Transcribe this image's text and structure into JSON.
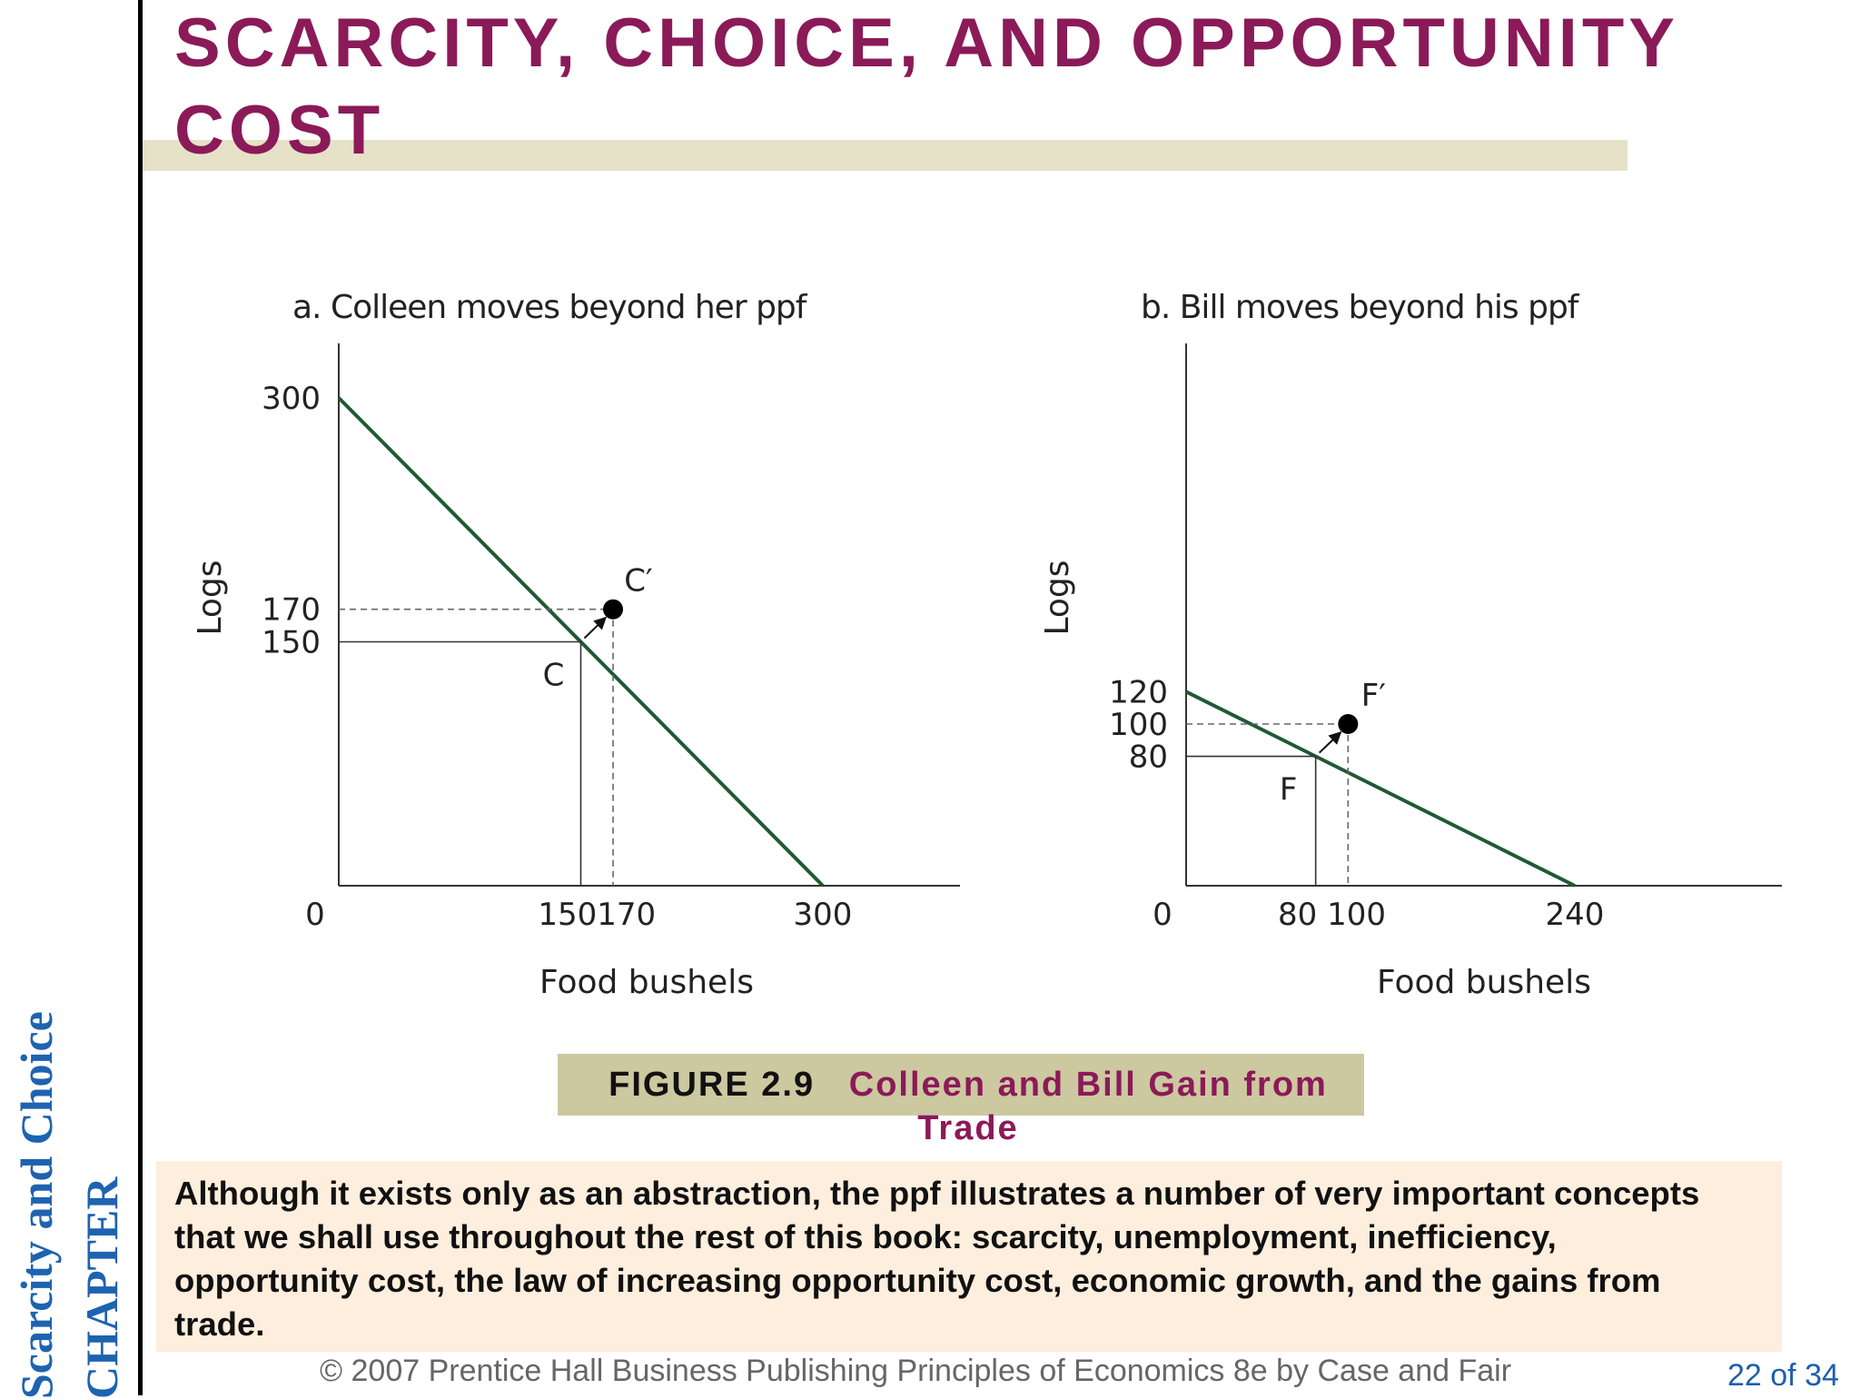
{
  "sidebar": {
    "line1": "Scarcity and Choice",
    "line2": "CHAPTER"
  },
  "title": "SCARCITY, CHOICE, AND OPPORTUNITY COST",
  "chart_data": [
    {
      "type": "line",
      "title": "a. Colleen moves beyond her ppf",
      "xlabel": "Food bushels",
      "ylabel": "Logs",
      "xlim": [
        0,
        300
      ],
      "ylim": [
        0,
        300
      ],
      "x_ticks": [
        0,
        150,
        170,
        300
      ],
      "x_tick_labels": [
        "0",
        "150170",
        "300"
      ],
      "y_ticks": [
        300,
        170,
        150
      ],
      "series": [
        {
          "x": [
            0,
            300
          ],
          "y": [
            300,
            0
          ]
        }
      ],
      "points": [
        {
          "label": "C",
          "x": 150,
          "y": 150,
          "marker": false
        },
        {
          "label": "C′",
          "x": 170,
          "y": 170,
          "marker": true
        }
      ],
      "color": "#1f5a32"
    },
    {
      "type": "line",
      "title": "b. Bill moves beyond his ppf",
      "xlabel": "Food bushels",
      "ylabel": "Logs",
      "xlim": [
        0,
        240
      ],
      "ylim": [
        0,
        120
      ],
      "x_ticks": [
        0,
        80,
        100,
        240
      ],
      "x_tick_labels": [
        "0",
        "80 100",
        "240"
      ],
      "y_ticks": [
        120,
        100,
        80
      ],
      "series": [
        {
          "x": [
            0,
            240
          ],
          "y": [
            120,
            0
          ]
        }
      ],
      "points": [
        {
          "label": "F",
          "x": 80,
          "y": 80,
          "marker": false
        },
        {
          "label": "F′",
          "x": 100,
          "y": 100,
          "marker": true
        }
      ],
      "color": "#1f5a32"
    }
  ],
  "figure": {
    "number": "FIGURE 2.9",
    "caption": "Colleen and Bill Gain from Trade"
  },
  "body": "Although it exists only as an abstraction, the ppf illustrates a number of very important concepts that we shall use throughout the rest of this book: scarcity, unemployment, inefficiency, opportunity cost, the law of increasing opportunity cost, economic growth, and the gains from trade.",
  "footer": "© 2007 Prentice Hall Business Publishing   Principles of Economics 8e by Case and Fair",
  "page": "22 of 34",
  "colors": {
    "accent": "#8b1a58",
    "sidebar": "#1e63b0",
    "ppf": "#1f5a32",
    "figure_box": "#ccc8a0",
    "body_box": "#fdeedd"
  }
}
